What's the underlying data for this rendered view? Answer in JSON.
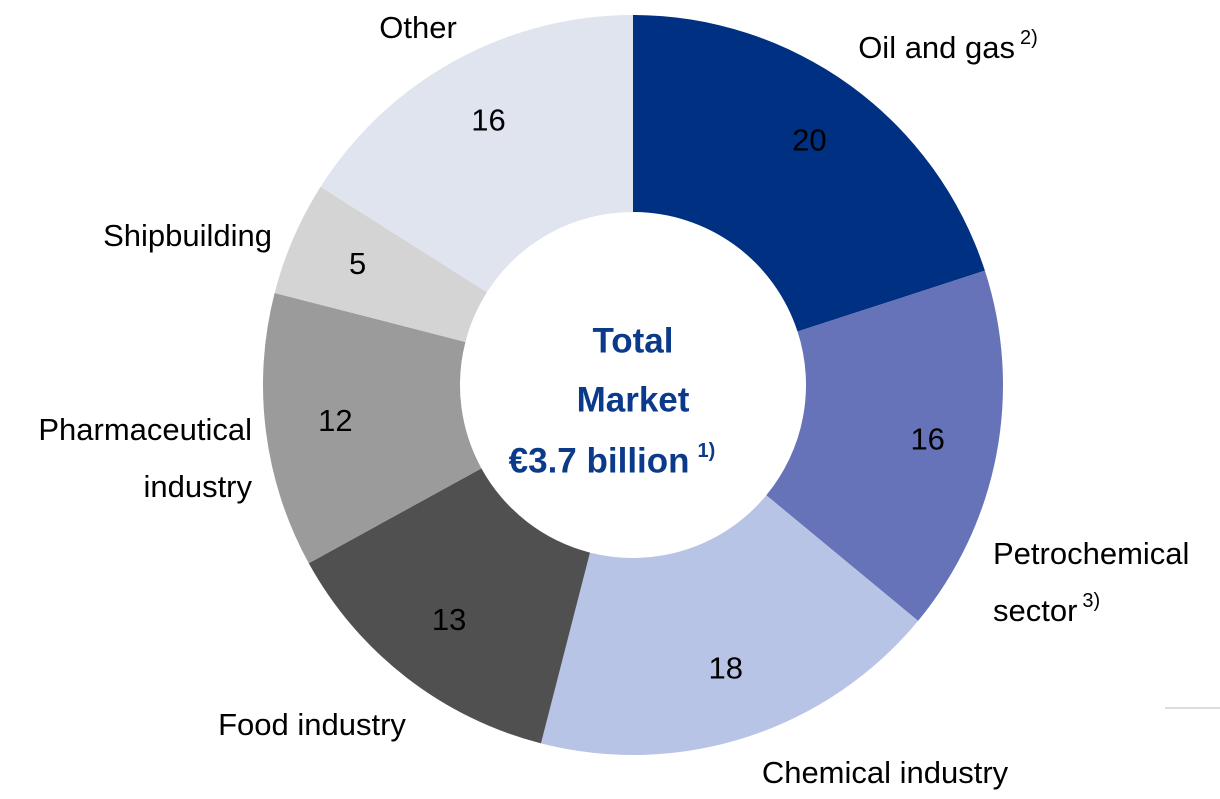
{
  "chart_data": {
    "type": "donut",
    "categories": [
      "Oil and gas",
      "Petrochemical sector",
      "Chemical industry",
      "Food industry",
      "Pharmaceutical industry",
      "Shipbuilding",
      "Other"
    ],
    "footnotes": [
      "2)",
      "3)",
      null,
      null,
      null,
      null,
      null
    ],
    "values": [
      20,
      16,
      18,
      13,
      12,
      5,
      16
    ],
    "colors": [
      "#003082",
      "#6673b8",
      "#b8c4e6",
      "#505050",
      "#9b9b9b",
      "#d4d4d4",
      "#dfe4ef"
    ],
    "center_text": [
      "Total",
      "Market",
      "€3.7 billion"
    ],
    "center_footnote": "1)"
  }
}
